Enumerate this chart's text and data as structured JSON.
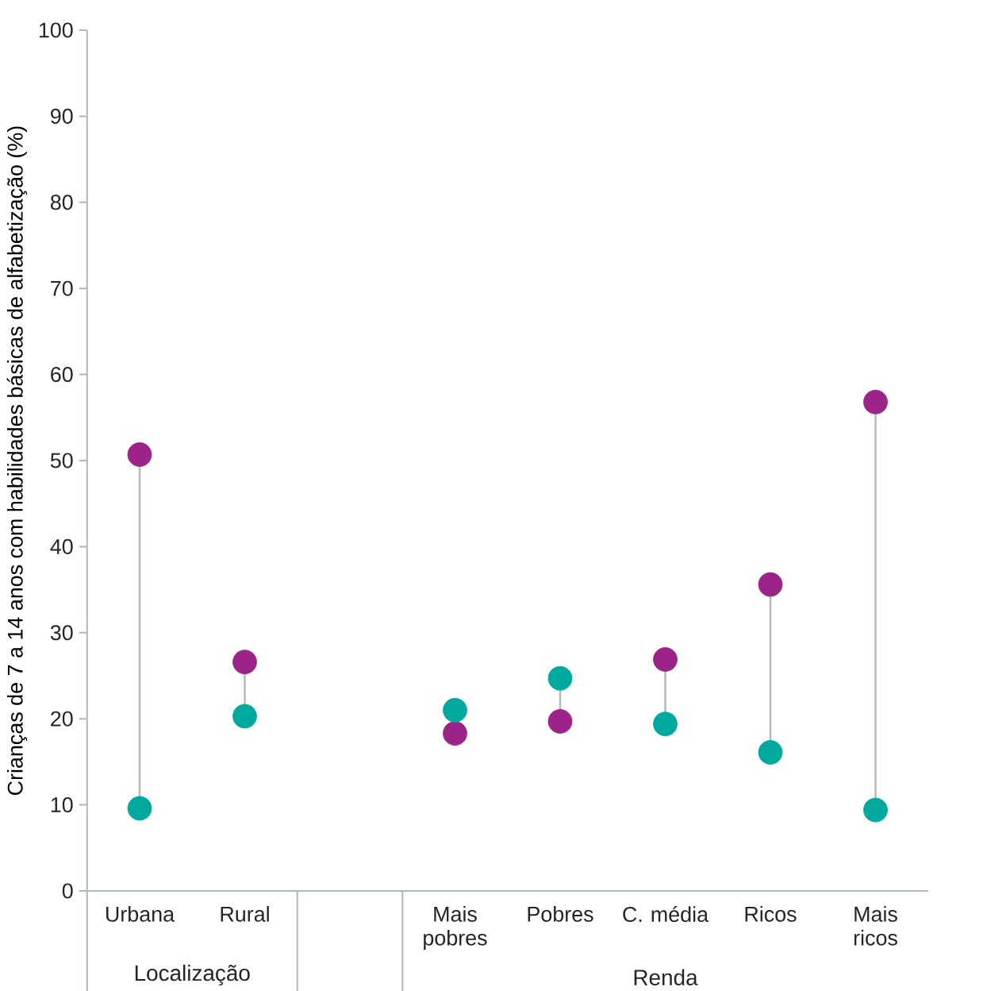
{
  "chart_data": {
    "type": "scatter",
    "ylabel": "Crianças de 7 a 14 anos com habilidades básicas de alfabetização (%)",
    "categories": [
      "Urbana",
      "Rural",
      null,
      "Mais pobres",
      "Pobres",
      "C. média",
      "Ricos",
      "Mais ricos"
    ],
    "series": [
      {
        "color": "#9c2387",
        "marker": "circle",
        "values": [
          50.7,
          26.6,
          null,
          18.3,
          19.7,
          26.9,
          35.6,
          56.8
        ]
      },
      {
        "color": "#00a99d",
        "marker": "circle",
        "values": [
          9.6,
          20.3,
          null,
          21.0,
          24.7,
          19.4,
          16.1,
          9.4
        ]
      }
    ],
    "ylim": [
      0,
      100
    ],
    "yticks": [
      0,
      10,
      20,
      30,
      40,
      50,
      60,
      70,
      80,
      90,
      100
    ],
    "grid": false,
    "legend": false,
    "annotations": [
      "Localização",
      "Renda"
    ]
  }
}
